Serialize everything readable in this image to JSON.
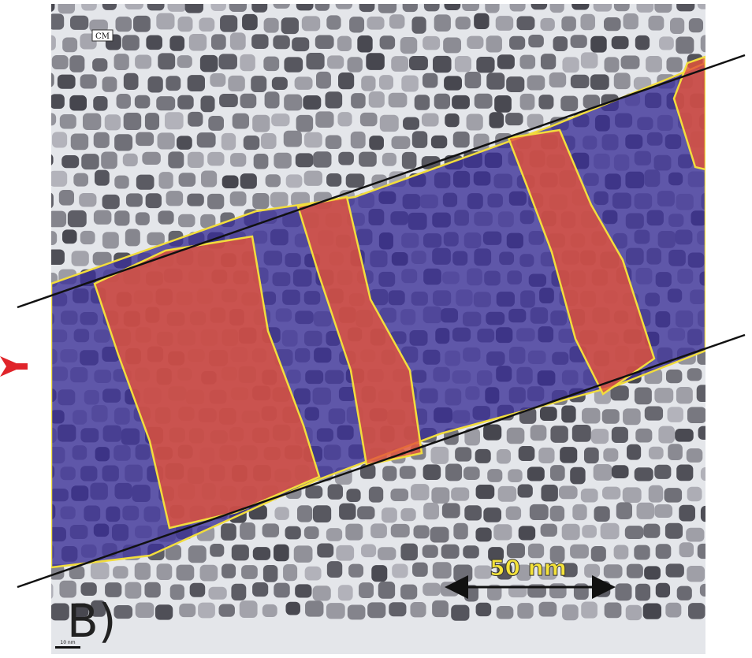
{
  "labels": {
    "corner_tag": "CM",
    "scale_bar": "50 nm",
    "panel": "B)",
    "small_scale": "10 nm"
  }
}
